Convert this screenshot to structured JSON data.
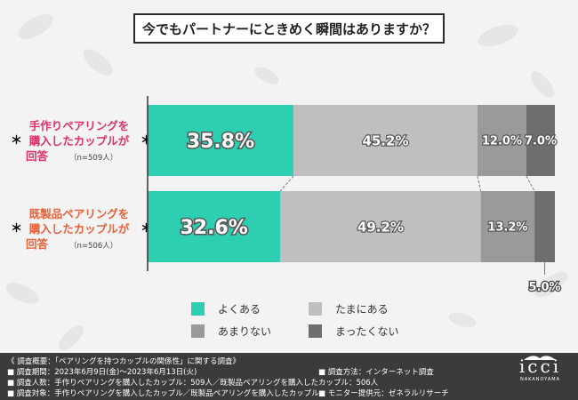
{
  "title": "今でもパートナーにときめく瞬間はありますか？",
  "colors": {
    "yoku": "#2ecfb1",
    "tamani": "#bfbfbf",
    "amari": "#9a9a9a",
    "mattaku": "#6e6e6e",
    "label_pink": "#e0306a",
    "label_orange": "#e8613a"
  },
  "rows": [
    {
      "line1": "手作りペアリングを",
      "line2": "購入したカップルが",
      "line3": "回答",
      "n": "（n=509人）",
      "star": "＊"
    },
    {
      "line1": "既製品ペアリングを",
      "line2": "購入したカップルが",
      "line3": "回答",
      "n": "（n=506人）",
      "star": "＊"
    }
  ],
  "chart_data": {
    "type": "bar",
    "orientation": "horizontal",
    "stacked": true,
    "percent": true,
    "categories": [
      "手作りペアリングを購入したカップルが回答（n=509人）",
      "既製品ペアリングを購入したカップルが回答（n=506人）"
    ],
    "series": [
      {
        "name": "よくある",
        "values": [
          35.8,
          32.6
        ],
        "labels": [
          "35.8%",
          "32.6%"
        ]
      },
      {
        "name": "たまにある",
        "values": [
          45.2,
          49.2
        ],
        "labels": [
          "45.2%",
          "49.2%"
        ]
      },
      {
        "name": "あまりない",
        "values": [
          12.0,
          13.2
        ],
        "labels": [
          "12.0%",
          "13.2%"
        ]
      },
      {
        "name": "まったくない",
        "values": [
          7.0,
          5.0
        ],
        "labels": [
          "7.0%",
          "5.0%"
        ]
      }
    ],
    "title": "今でもパートナーにときめく瞬間はありますか？",
    "xlim": [
      0,
      100
    ],
    "legend_position": "bottom"
  },
  "footer": {
    "left": [
      "《 調査概要：「ペアリングを持つカップルの関係性」に関する調査》",
      "■ 調査期間：2023年6月9日(金)〜2023年6月13日(火)",
      "■ 調査人数：手作りペアリングを購入したカップル：509人／既製品ペアリングを購入したカップル：506人",
      "■ 調査対象：手作りペアリングを購入したカップル／既製品ペアリングを購入したカップル"
    ],
    "right": [
      "■ 調査方法：インターネット調査",
      "",
      "■ モニター提供元：ゼネラルリサーチ"
    ]
  },
  "logo": {
    "mark": "icci",
    "sub": "NAKANOYAMA",
    "icon": "crown-logo-icon"
  }
}
